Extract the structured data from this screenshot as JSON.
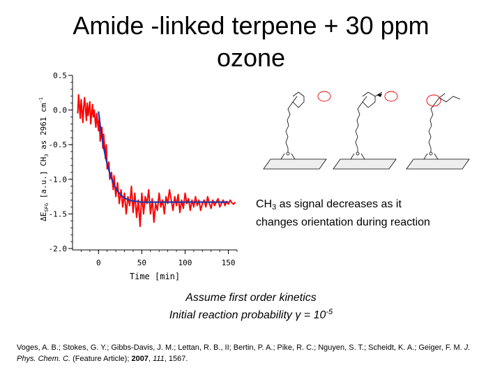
{
  "title": "Amide -linked terpene + 30 ppm ozone",
  "annotation": {
    "prefix": "CH",
    "sub": "3",
    "suffix": " as signal decreases as  it changes orientation during reaction"
  },
  "assumption": {
    "line1": "Assume first order kinetics",
    "line2_prefix": "Initial reaction probability ",
    "gamma": "γ",
    "line2_mid": " = 10",
    "exponent": "-5"
  },
  "reference": {
    "authors": "Voges, A. B.; Stokes, G. Y.; Gibbs-Davis, J. M.; Lettan, R. B., II; Bertin, P. A.; Pike, R. C.; Nguyen, S. T.; Scheidt, K. A.; Geiger, F. M. ",
    "journal": "J. Phys. Chem. C.",
    "type": " (Feature Article); ",
    "year": "2007",
    "sep1": ", ",
    "volume": "111",
    "pages": ", 1567."
  },
  "chart_data": {
    "type": "line",
    "xlabel": "Time [min]",
    "ylabel": {
      "main": "ΔE",
      "sub1": "SFG",
      "mid": " [a.u.] CH",
      "sub2": "3",
      "rest": " as 2961 cm",
      "sup": "-1"
    },
    "xlim": [
      -30,
      160
    ],
    "ylim": [
      -2.0,
      0.5
    ],
    "xticks": [
      0,
      50,
      100,
      150
    ],
    "xtick_labels": [
      "0",
      "50",
      "100",
      "150"
    ],
    "yticks": [
      0.5,
      0.0,
      -0.5,
      -1.0,
      -1.5,
      -2.0
    ],
    "ytick_labels": [
      "0.5",
      "0.0",
      "-0.5",
      "-1.0",
      "-1.5",
      "-2.0"
    ],
    "grid": false,
    "series": [
      {
        "color": "#ff0000",
        "x": [
          -24,
          -23,
          -21,
          -20,
          -18,
          -17,
          -16,
          -14,
          -13,
          -12,
          -10,
          -9,
          -7,
          -6,
          -5,
          -3,
          -2,
          0,
          1,
          2,
          4,
          5,
          6,
          8,
          9,
          10,
          12,
          13,
          15,
          17,
          18,
          20,
          22,
          24,
          26,
          28,
          30,
          32,
          34,
          36,
          38,
          40,
          42,
          44,
          46,
          48,
          50,
          52,
          54,
          56,
          58,
          60,
          62,
          64,
          66,
          68,
          70,
          72,
          74,
          76,
          78,
          80,
          82,
          84,
          86,
          88,
          90,
          92,
          94,
          96,
          98,
          100,
          102,
          104,
          106,
          108,
          110,
          112,
          114,
          116,
          118,
          120,
          122,
          124,
          126,
          128,
          130,
          132,
          134,
          136,
          138,
          140,
          142,
          144,
          146,
          148,
          150,
          152,
          154,
          156,
          158
        ],
        "values": [
          -0.05,
          0.22,
          -0.12,
          0.15,
          -0.18,
          0.05,
          0.18,
          -0.15,
          0.1,
          -0.08,
          0.12,
          -0.2,
          0.08,
          -0.1,
          0.0,
          -0.25,
          -0.05,
          -0.3,
          -0.1,
          -0.45,
          -0.25,
          -0.55,
          -0.35,
          -0.7,
          -0.5,
          -0.85,
          -0.75,
          -1.0,
          -0.9,
          -1.15,
          -0.95,
          -1.25,
          -1.05,
          -1.35,
          -1.15,
          -1.4,
          -1.2,
          -1.5,
          -1.25,
          -1.38,
          -1.1,
          -1.48,
          -1.2,
          -1.55,
          -1.3,
          -1.68,
          -1.2,
          -1.5,
          -1.25,
          -1.35,
          -1.15,
          -1.5,
          -1.28,
          -1.62,
          -1.35,
          -1.45,
          -1.2,
          -1.4,
          -1.3,
          -1.5,
          -1.25,
          -1.35,
          -1.15,
          -1.3,
          -1.45,
          -1.25,
          -1.38,
          -1.22,
          -1.48,
          -1.3,
          -1.42,
          -1.2,
          -1.35,
          -1.28,
          -1.45,
          -1.3,
          -1.4,
          -1.25,
          -1.38,
          -1.3,
          -1.45,
          -1.35,
          -1.3,
          -1.4,
          -1.25,
          -1.35,
          -1.42,
          -1.3,
          -1.38,
          -1.33,
          -1.28,
          -1.4,
          -1.35,
          -1.3,
          -1.38,
          -1.32,
          -1.36,
          -1.3,
          -1.34,
          -1.36,
          -1.33
        ]
      },
      {
        "color": "#2233aa",
        "x": [
          0,
          2,
          4,
          6,
          8,
          10,
          12,
          14,
          16,
          18,
          20,
          22,
          24,
          26,
          28,
          30,
          32,
          34,
          36,
          38,
          40,
          42,
          44,
          46,
          48,
          50,
          55,
          60,
          65,
          70,
          75,
          80,
          90,
          100,
          110,
          120,
          130,
          140,
          150
        ],
        "values": [
          -0.02,
          -0.22,
          -0.39,
          -0.54,
          -0.67,
          -0.78,
          -0.87,
          -0.95,
          -1.02,
          -1.08,
          -1.13,
          -1.17,
          -1.2,
          -1.23,
          -1.25,
          -1.27,
          -1.28,
          -1.29,
          -1.3,
          -1.31,
          -1.31,
          -1.32,
          -1.32,
          -1.32,
          -1.33,
          -1.33,
          -1.33,
          -1.33,
          -1.33,
          -1.33,
          -1.33,
          -1.33,
          -1.33,
          -1.33,
          -1.33,
          -1.33,
          -1.33,
          -1.33,
          -1.33
        ]
      }
    ]
  }
}
